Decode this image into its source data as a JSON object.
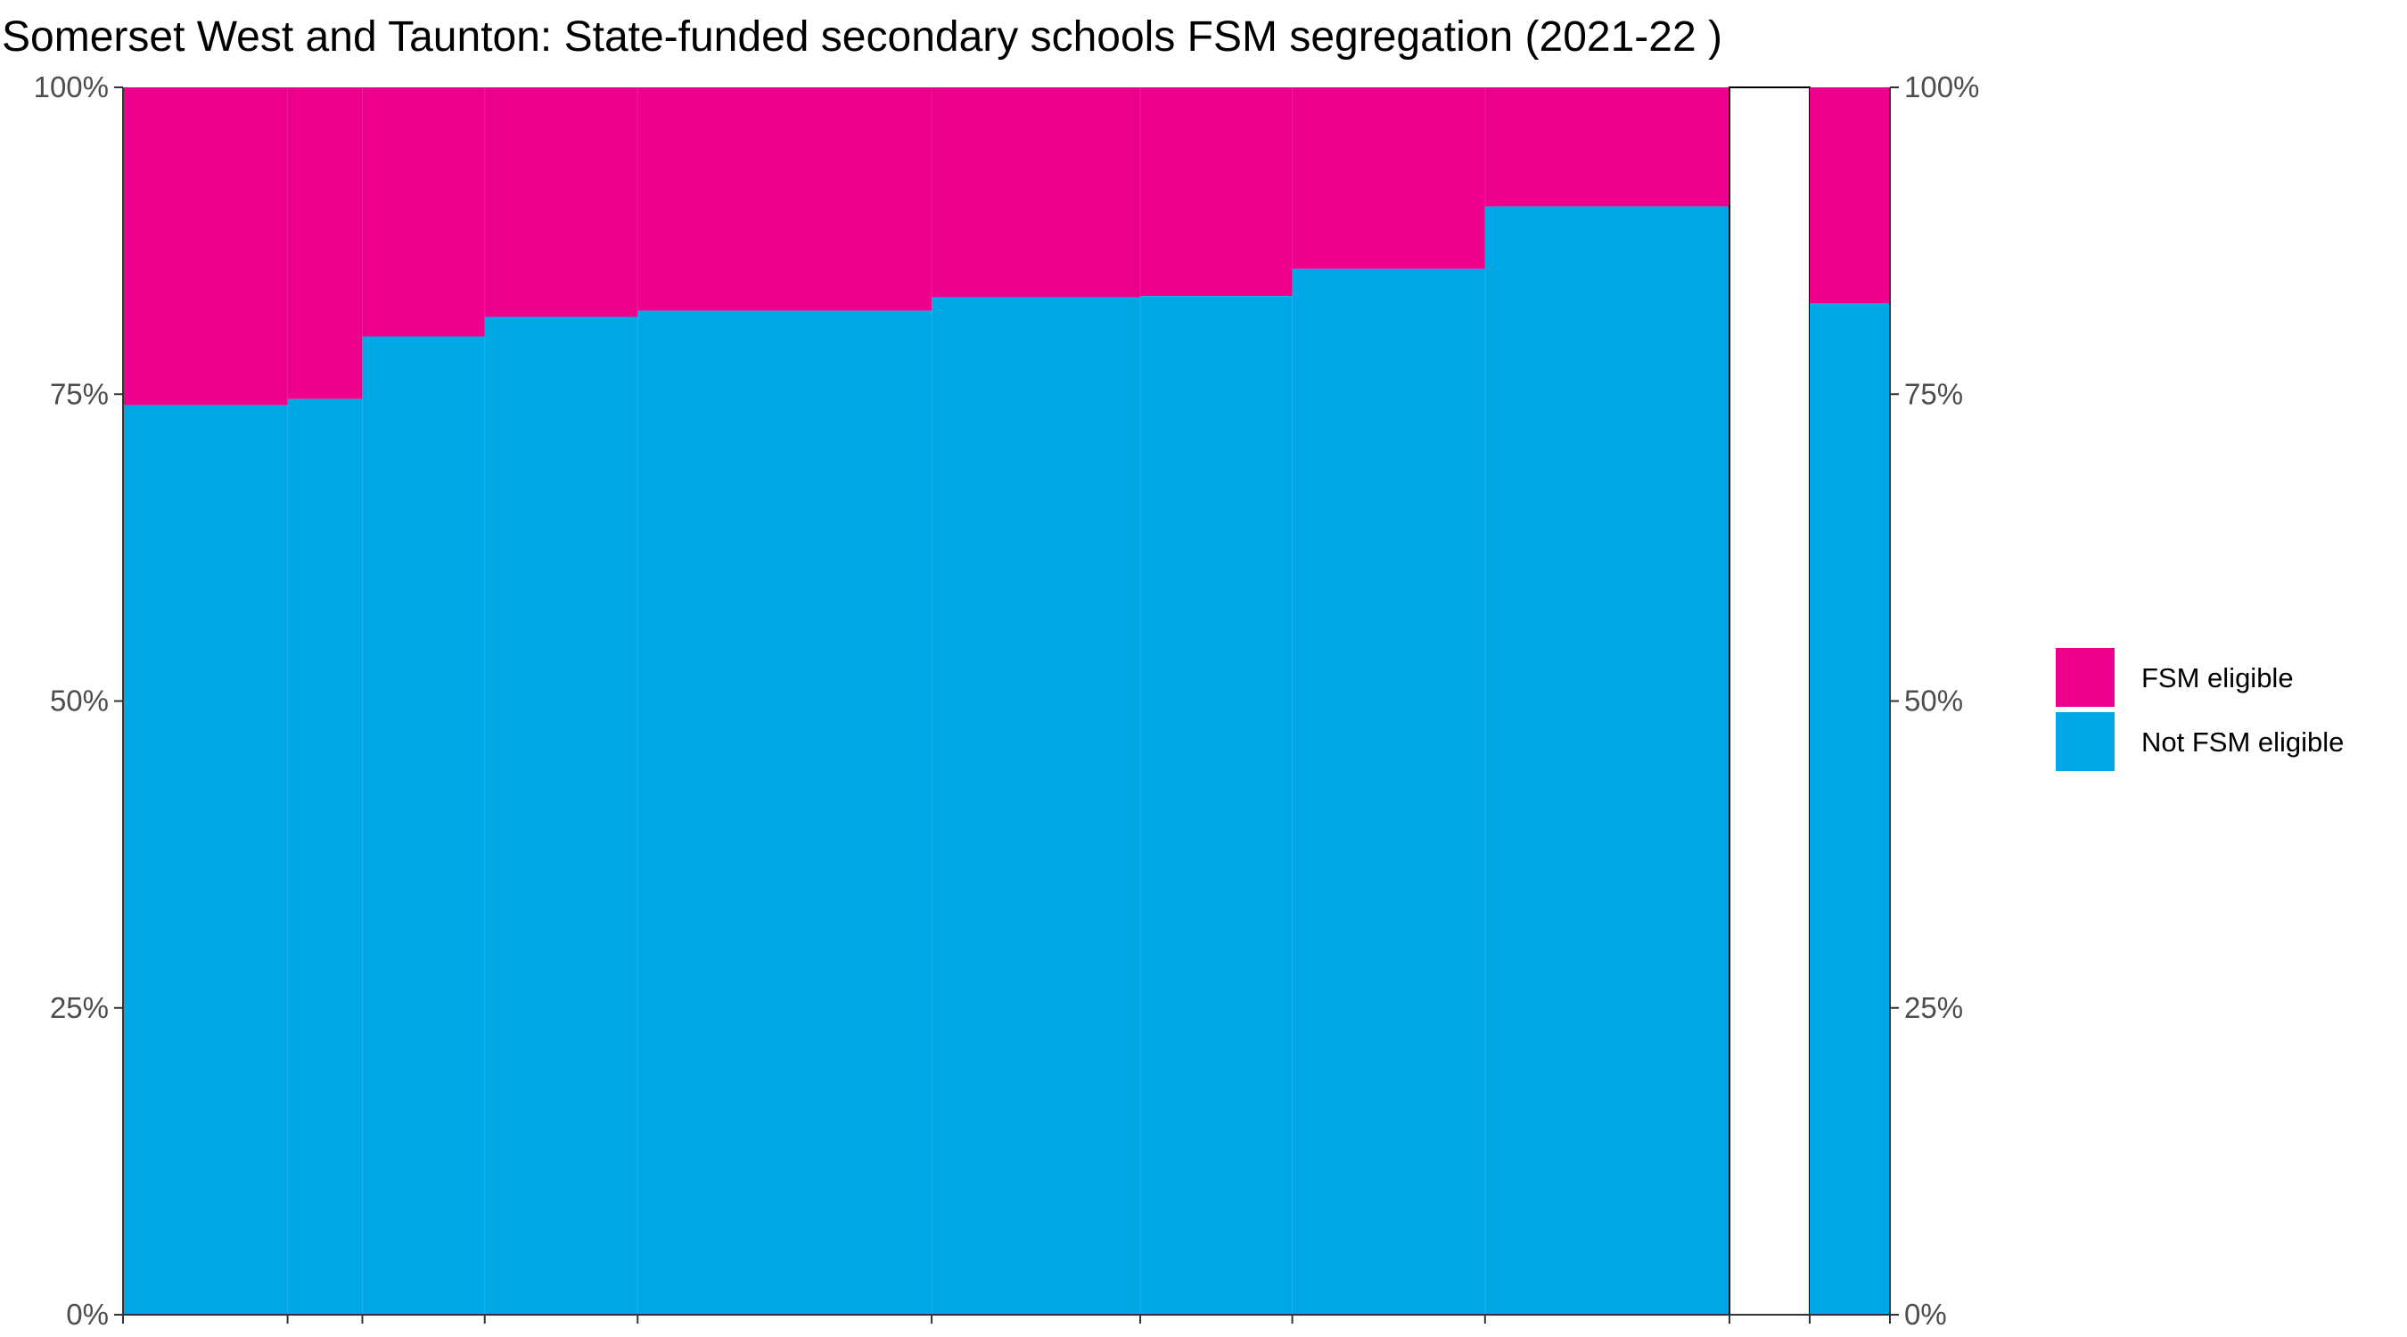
{
  "chart_data": {
    "type": "bar",
    "subtype": "stacked-100-variable-width",
    "title": "Somerset West and Taunton: State-funded secondary schools FSM segregation (2021-22 )",
    "xlabel": "",
    "ylabel": "",
    "ylim": [
      0,
      1
    ],
    "y_ticks": [
      "0%",
      "25%",
      "50%",
      "75%",
      "100%"
    ],
    "y_axis_position": "both",
    "grid": false,
    "legend_position": "right",
    "colors": {
      "fsm": "#ec008c",
      "not_fsm": "#00a8e6",
      "divider": "#000000"
    },
    "legend": [
      {
        "key": "fsm",
        "label": "FSM eligible"
      },
      {
        "key": "not_fsm",
        "label": "Not FSM eligible"
      }
    ],
    "series": [
      {
        "name": "FSM eligible",
        "key": "fsm"
      },
      {
        "name": "Not FSM eligible",
        "key": "not_fsm"
      }
    ],
    "schools": [
      {
        "width_share": 0.0933,
        "not_fsm": 0.741
      },
      {
        "width_share": 0.0424,
        "not_fsm": 0.746
      },
      {
        "width_share": 0.0694,
        "not_fsm": 0.797
      },
      {
        "width_share": 0.0867,
        "not_fsm": 0.813
      },
      {
        "width_share": 0.1667,
        "not_fsm": 0.818
      },
      {
        "width_share": 0.1183,
        "not_fsm": 0.829
      },
      {
        "width_share": 0.0862,
        "not_fsm": 0.83
      },
      {
        "width_share": 0.1093,
        "not_fsm": 0.852
      },
      {
        "width_share": 0.1386,
        "not_fsm": 0.903
      }
    ],
    "overall": {
      "not_fsm": 0.824
    }
  }
}
